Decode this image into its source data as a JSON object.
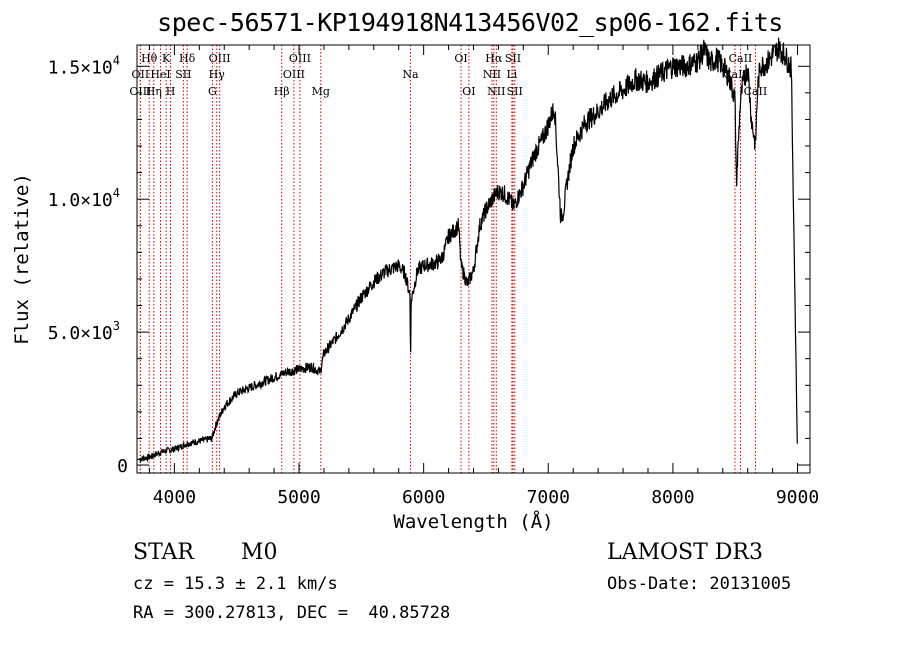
{
  "chart_data": {
    "type": "line",
    "title": "spec-56571-KP194918N413456V02_sp06-162.fits",
    "xlabel": "Wavelength (Å)",
    "ylabel": "Flux (relative)",
    "xlim": [
      3700,
      9100
    ],
    "ylim": [
      -300,
      15800
    ],
    "x_ticks": [
      {
        "value": 4000,
        "label": "4000"
      },
      {
        "value": 5000,
        "label": "5000"
      },
      {
        "value": 6000,
        "label": "6000"
      },
      {
        "value": 7000,
        "label": "7000"
      },
      {
        "value": 8000,
        "label": "8000"
      },
      {
        "value": 9000,
        "label": "9000"
      }
    ],
    "y_ticks": [
      {
        "value": 0,
        "mantissa": "0",
        "exponent": ""
      },
      {
        "value": 5000,
        "mantissa": "5.0×10",
        "exponent": "3"
      },
      {
        "value": 10000,
        "mantissa": "1.0×10",
        "exponent": "4"
      },
      {
        "value": 15000,
        "mantissa": "1.5×10",
        "exponent": "4"
      }
    ],
    "line_color": "#000000",
    "marker_color": "#cc0000",
    "spectrum": {
      "name": "flux",
      "x": [
        3700,
        3800,
        3900,
        4000,
        4100,
        4200,
        4300,
        4340,
        4400,
        4500,
        4600,
        4700,
        4800,
        4900,
        5000,
        5100,
        5170,
        5200,
        5300,
        5400,
        5500,
        5600,
        5700,
        5800,
        5850,
        5890,
        5895,
        5900,
        5950,
        6000,
        6100,
        6150,
        6200,
        6280,
        6300,
        6350,
        6400,
        6450,
        6500,
        6550,
        6600,
        6650,
        6700,
        6720,
        6800,
        6850,
        6900,
        6950,
        7000,
        7050,
        7100,
        7120,
        7150,
        7200,
        7300,
        7400,
        7500,
        7600,
        7700,
        7800,
        7900,
        8000,
        8100,
        8200,
        8250,
        8300,
        8350,
        8400,
        8450,
        8498,
        8510,
        8540,
        8560,
        8600,
        8630,
        8662,
        8680,
        8700,
        8750,
        8800,
        8850,
        8900,
        8950,
        8990,
        9000
      ],
      "y": [
        200,
        300,
        500,
        600,
        800,
        900,
        1000,
        1600,
        2200,
        2700,
        2900,
        3100,
        3300,
        3500,
        3600,
        3700,
        3500,
        4200,
        4800,
        5500,
        6300,
        6900,
        7300,
        7500,
        7200,
        6400,
        4000,
        6200,
        7300,
        7500,
        7600,
        7800,
        8600,
        9000,
        7500,
        6800,
        7300,
        9000,
        9600,
        10000,
        10300,
        10200,
        9900,
        9700,
        10500,
        11200,
        11800,
        12200,
        12800,
        13500,
        9300,
        9500,
        10600,
        12000,
        12900,
        13300,
        13800,
        14100,
        14500,
        14400,
        14700,
        15000,
        15000,
        15200,
        15600,
        15100,
        15300,
        15000,
        14600,
        13800,
        10600,
        13600,
        14300,
        15000,
        13000,
        12000,
        14200,
        15000,
        15100,
        15400,
        15700,
        15400,
        14900,
        3200,
        200
      ]
    },
    "line_markers": [
      {
        "label": "Hθ",
        "wavelength": 3798,
        "row": 1
      },
      {
        "label": "OII",
        "wavelength": 3727,
        "row": 2
      },
      {
        "label": "OIII",
        "wavelength": 3727,
        "row": 3
      },
      {
        "label": "K",
        "wavelength": 3934,
        "row": 1
      },
      {
        "label": "HeI",
        "wavelength": 3889,
        "row": 2
      },
      {
        "label": "Hη",
        "wavelength": 3835,
        "row": 3
      },
      {
        "label": "H",
        "wavelength": 3969,
        "row": 3
      },
      {
        "label": "Hδ",
        "wavelength": 4102,
        "row": 1
      },
      {
        "label": "SII",
        "wavelength": 4072,
        "row": 2
      },
      {
        "label": "OIII",
        "wavelength": 4363,
        "row": 1
      },
      {
        "label": "Hγ",
        "wavelength": 4340,
        "row": 2
      },
      {
        "label": "G",
        "wavelength": 4305,
        "row": 3
      },
      {
        "label": "OIII",
        "wavelength": 5007,
        "row": 1
      },
      {
        "label": "OIII",
        "wavelength": 4959,
        "row": 2
      },
      {
        "label": "Hβ",
        "wavelength": 4861,
        "row": 3
      },
      {
        "label": "Mg",
        "wavelength": 5175,
        "row": 3
      },
      {
        "label": "Na",
        "wavelength": 5894,
        "row": 2
      },
      {
        "label": "OI",
        "wavelength": 6300,
        "row": 1
      },
      {
        "label": "OI",
        "wavelength": 6363,
        "row": 3
      },
      {
        "label": "Hα",
        "wavelength": 6563,
        "row": 1
      },
      {
        "label": "SII",
        "wavelength": 6717,
        "row": 1
      },
      {
        "label": "NII",
        "wavelength": 6548,
        "row": 2
      },
      {
        "label": "Li",
        "wavelength": 6708,
        "row": 2
      },
      {
        "label": "NII",
        "wavelength": 6583,
        "row": 3
      },
      {
        "label": "SII",
        "wavelength": 6731,
        "row": 3
      },
      {
        "label": "CaII",
        "wavelength": 8542,
        "row": 1
      },
      {
        "label": "CaII",
        "wavelength": 8498,
        "row": 2
      },
      {
        "label": "CaII",
        "wavelength": 8662,
        "row": 3
      }
    ]
  },
  "info": {
    "object_class": "STAR",
    "subclass": "M0",
    "survey": "LAMOST DR3",
    "cz": "cz = 15.3 ± 2.1 km/s",
    "obs_date": "Obs-Date: 20131005",
    "coords": "RA = 300.27813, DEC =  40.85728"
  }
}
